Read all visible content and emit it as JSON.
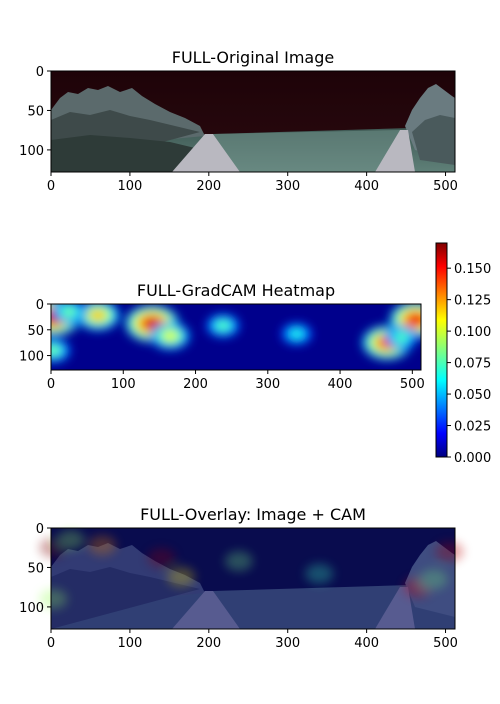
{
  "chart_data": [
    {
      "type": "image",
      "title": "FULL-Original Image",
      "xlabel": "",
      "ylabel": "",
      "xlim": [
        0,
        512
      ],
      "ylim": [
        128,
        0
      ],
      "xticks": [
        0,
        100,
        200,
        300,
        400,
        500
      ],
      "yticks": [
        0,
        50,
        100
      ],
      "content": "road-scene photo: dark maroon sky, trees on both sides, grass field, road converging toward center"
    },
    {
      "type": "heatmap",
      "title": "FULL-GradCAM Heatmap",
      "xlabel": "",
      "ylabel": "",
      "xlim": [
        0,
        512
      ],
      "ylim": [
        128,
        0
      ],
      "xticks": [
        0,
        100,
        200,
        300,
        400,
        500
      ],
      "yticks": [
        0,
        50,
        100
      ],
      "colormap": "jet",
      "colorbar": {
        "range": [
          0.0,
          0.17
        ],
        "ticks": [
          "0.000",
          "0.025",
          "0.050",
          "0.075",
          "0.100",
          "0.125",
          "0.150"
        ]
      },
      "hotspots": [
        {
          "x": 3,
          "y": 25,
          "value": 0.17
        },
        {
          "x": 140,
          "y": 38,
          "value": 0.165
        },
        {
          "x": 505,
          "y": 30,
          "value": 0.16
        },
        {
          "x": 465,
          "y": 75,
          "value": 0.15
        },
        {
          "x": 65,
          "y": 22,
          "value": 0.125
        },
        {
          "x": 165,
          "y": 62,
          "value": 0.11
        },
        {
          "x": 25,
          "y": 15,
          "value": 0.09
        },
        {
          "x": 238,
          "y": 42,
          "value": 0.085
        },
        {
          "x": 340,
          "y": 58,
          "value": 0.075
        },
        {
          "x": 485,
          "y": 65,
          "value": 0.085
        },
        {
          "x": 3,
          "y": 90,
          "value": 0.09
        }
      ]
    },
    {
      "type": "image",
      "title": "FULL-Overlay: Image + CAM",
      "xlabel": "",
      "ylabel": "",
      "xlim": [
        0,
        512
      ],
      "ylim": [
        128,
        0
      ],
      "xticks": [
        0,
        100,
        200,
        300,
        400,
        500
      ],
      "yticks": [
        0,
        50,
        100
      ],
      "content": "road-scene photo blended with blue-dominant CAM overlay"
    }
  ]
}
